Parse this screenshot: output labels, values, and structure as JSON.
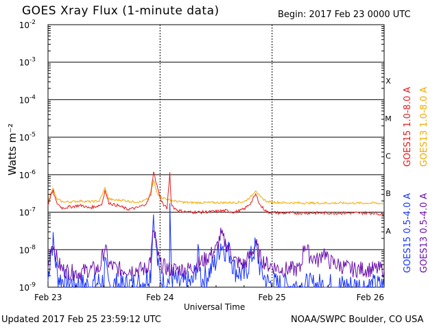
{
  "title": "GOES Xray Flux (1-minute data)",
  "begin_label": "Begin:  2017 Feb 23 0000 UTC",
  "updated_label": "Updated 2017 Feb 25 23:59:12 UTC",
  "credit_label": "NOAA/SWPC Boulder, CO USA",
  "colors": {
    "goes15_long": "#e41a1a",
    "goes13_long": "#f2a900",
    "goes15_short": "#1432ff",
    "goes13_short": "#6a0dad",
    "grid": "#000000"
  },
  "chart_data": {
    "type": "line",
    "title": "GOES Xray Flux (1-minute data)",
    "xlabel": "Universal Time",
    "ylabel": "Watts m⁻²",
    "y_scale": "log",
    "ylim": [
      1e-09,
      0.01
    ],
    "xlim": [
      0,
      72
    ],
    "x_unit": "hours since 2017 Feb 23 0000 UTC",
    "x_ticks": [
      {
        "value": 0,
        "label": "Feb 23"
      },
      {
        "value": 24,
        "label": "Feb 24"
      },
      {
        "value": 48,
        "label": "Feb 25"
      },
      {
        "value": 72,
        "label": "Feb 26"
      }
    ],
    "y_ticks": [
      {
        "exp": -9,
        "label": "10",
        "sup": "-9"
      },
      {
        "exp": -8,
        "label": "10",
        "sup": "-8"
      },
      {
        "exp": -7,
        "label": "10",
        "sup": "-7"
      },
      {
        "exp": -6,
        "label": "10",
        "sup": "-6"
      },
      {
        "exp": -5,
        "label": "10",
        "sup": "-5"
      },
      {
        "exp": -4,
        "label": "10",
        "sup": "-4"
      },
      {
        "exp": -3,
        "label": "10",
        "sup": "-3"
      },
      {
        "exp": -2,
        "label": "10",
        "sup": "-2"
      }
    ],
    "flare_classes": [
      {
        "label": "A",
        "exp": -7.5
      },
      {
        "label": "B",
        "exp": -6.5
      },
      {
        "label": "C",
        "exp": -5.5
      },
      {
        "label": "M",
        "exp": -4.5
      },
      {
        "label": "X",
        "exp": -3.5
      }
    ],
    "legend": [
      "GOES15 1.0-8.0 A",
      "GOES13 1.0-8.0 A",
      "GOES15 0.5-4.0 A",
      "GOES13 0.5-4.0 A"
    ],
    "legend_position": "right, vertical",
    "series": [
      {
        "name": "GOES15 1.0-8.0 A",
        "color": "#e41a1a",
        "points": [
          [
            0,
            1.6e-07
          ],
          [
            0.6,
            2.8e-07
          ],
          [
            1.1,
            3.6e-07
          ],
          [
            1.8,
            1.8e-07
          ],
          [
            3,
            1.3e-07
          ],
          [
            5,
            1.4e-07
          ],
          [
            6.5,
            1.5e-07
          ],
          [
            7.5,
            1.5e-07
          ],
          [
            8.5,
            1.3e-07
          ],
          [
            10,
            1.4e-07
          ],
          [
            11.5,
            1.6e-07
          ],
          [
            12.2,
            3.8e-07
          ],
          [
            13,
            1.8e-07
          ],
          [
            14,
            1.6e-07
          ],
          [
            15,
            1.5e-07
          ],
          [
            17,
            1.2e-07
          ],
          [
            19,
            1.3e-07
          ],
          [
            20.3,
            1.5e-07
          ],
          [
            21.2,
            1.8e-07
          ],
          [
            22,
            3e-07
          ],
          [
            22.6,
            1.2e-06
          ],
          [
            23.2,
            6e-07
          ],
          [
            24,
            2.5e-07
          ],
          [
            24.8,
            1.5e-07
          ],
          [
            25.5,
            1.3e-07
          ],
          [
            26.1,
            1.1e-06
          ],
          [
            26.4,
            1.7e-07
          ],
          [
            27,
            1.3e-07
          ],
          [
            28,
            1.1e-07
          ],
          [
            30,
            1e-07
          ],
          [
            33,
            1e-07
          ],
          [
            36,
            1.05e-07
          ],
          [
            38,
            1.1e-07
          ],
          [
            40,
            1e-07
          ],
          [
            42,
            1.2e-07
          ],
          [
            43.5,
            1.8e-07
          ],
          [
            44.5,
            3e-07
          ],
          [
            45.5,
            1.5e-07
          ],
          [
            47,
            1e-07
          ],
          [
            50,
            9.5e-08
          ],
          [
            55,
            9.5e-08
          ],
          [
            60,
            9.5e-08
          ],
          [
            65,
            9.5e-08
          ],
          [
            70,
            9.5e-08
          ],
          [
            72,
            8.5e-08
          ]
        ]
      },
      {
        "name": "GOES13 1.0-8.0 A",
        "color": "#f2a900",
        "points": [
          [
            0,
            1.9e-07
          ],
          [
            0.6,
            3.4e-07
          ],
          [
            1.1,
            4.2e-07
          ],
          [
            1.8,
            2.3e-07
          ],
          [
            3,
            1.9e-07
          ],
          [
            5,
            1.9e-07
          ],
          [
            7,
            2e-07
          ],
          [
            9,
            1.9e-07
          ],
          [
            11,
            2e-07
          ],
          [
            12.2,
            4.4e-07
          ],
          [
            13,
            2.3e-07
          ],
          [
            14,
            2.1e-07
          ],
          [
            16,
            2.1e-07
          ],
          [
            18,
            1.9e-07
          ],
          [
            20,
            1.9e-07
          ],
          [
            21.5,
            2.3e-07
          ],
          [
            22,
            3.4e-07
          ],
          [
            22.6,
            7e-07
          ],
          [
            23.3,
            3.5e-07
          ],
          [
            24,
            2.6e-07
          ],
          [
            26,
            2.1e-07
          ],
          [
            28,
            1.9e-07
          ],
          [
            30,
            1.8e-07
          ],
          [
            33,
            1.8e-07
          ],
          [
            36,
            1.8e-07
          ],
          [
            40,
            1.8e-07
          ],
          [
            42,
            1.9e-07
          ],
          [
            43.5,
            2.6e-07
          ],
          [
            44.5,
            3.9e-07
          ],
          [
            45.5,
            2.5e-07
          ],
          [
            47,
            1.9e-07
          ],
          [
            50,
            1.8e-07
          ],
          [
            55,
            1.75e-07
          ],
          [
            60,
            1.75e-07
          ],
          [
            65,
            1.75e-07
          ],
          [
            70,
            1.75e-07
          ],
          [
            72,
            1.7e-07
          ]
        ]
      },
      {
        "name": "GOES15 0.5-4.0 A",
        "color": "#1432ff",
        "points": [
          [
            0,
            1.5e-09
          ],
          [
            0.6,
            1e-08
          ],
          [
            1.1,
            1.6e-08
          ],
          [
            2,
            2e-09
          ],
          [
            3,
            1.5e-09
          ],
          [
            6,
            1.2e-09
          ],
          [
            9,
            1.1e-09
          ],
          [
            12,
            1.5e-09
          ],
          [
            12.2,
            3.5e-09
          ],
          [
            13,
            1.2e-09
          ],
          [
            16,
            1.1e-09
          ],
          [
            20,
            1.2e-09
          ],
          [
            22,
            2.5e-09
          ],
          [
            22.6,
            1e-07
          ],
          [
            23,
            2e-08
          ],
          [
            23.6,
            3e-09
          ],
          [
            24.5,
            1.3e-09
          ],
          [
            26,
            1.5e-09
          ],
          [
            26.1,
            9e-08
          ],
          [
            26.5,
            2e-09
          ],
          [
            28,
            1.2e-09
          ],
          [
            31,
            1.3e-09
          ],
          [
            32.3,
            8e-09
          ],
          [
            32.8,
            1.5e-09
          ],
          [
            34,
            2e-09
          ],
          [
            36,
            5e-09
          ],
          [
            37,
            1.5e-08
          ],
          [
            38,
            1e-08
          ],
          [
            39,
            8e-09
          ],
          [
            40,
            3e-09
          ],
          [
            42,
            2e-09
          ],
          [
            43.5,
            6e-09
          ],
          [
            44.5,
            1.2e-08
          ],
          [
            45.5,
            3e-09
          ],
          [
            47,
            1.3e-09
          ],
          [
            50,
            1.1e-09
          ],
          [
            55,
            1.1e-09
          ],
          [
            60,
            1.1e-09
          ],
          [
            65,
            1.05e-09
          ],
          [
            70,
            1.05e-09
          ],
          [
            72,
            1.05e-09
          ]
        ]
      },
      {
        "name": "GOES13 0.5-4.0 A",
        "color": "#6a0dad",
        "points": [
          [
            0,
            3e-09
          ],
          [
            0.6,
            1.2e-08
          ],
          [
            1.1,
            1.5e-08
          ],
          [
            2,
            5e-09
          ],
          [
            3,
            3e-09
          ],
          [
            5,
            2.5e-09
          ],
          [
            7,
            2.5e-09
          ],
          [
            9,
            3e-09
          ],
          [
            11,
            3e-09
          ],
          [
            12.2,
            1.2e-08
          ],
          [
            13,
            4e-09
          ],
          [
            15,
            3e-09
          ],
          [
            17,
            3e-09
          ],
          [
            19,
            3e-09
          ],
          [
            21,
            3e-09
          ],
          [
            22,
            6e-09
          ],
          [
            22.6,
            3.5e-08
          ],
          [
            23.2,
            1.2e-08
          ],
          [
            24,
            4e-09
          ],
          [
            26,
            3e-09
          ],
          [
            28,
            3e-09
          ],
          [
            30,
            3e-09
          ],
          [
            32,
            4e-09
          ],
          [
            34,
            6e-09
          ],
          [
            36,
            1e-08
          ],
          [
            37,
            2.5e-08
          ],
          [
            38,
            1.5e-08
          ],
          [
            39,
            1e-08
          ],
          [
            40,
            5e-09
          ],
          [
            42,
            4e-09
          ],
          [
            43.5,
            8e-09
          ],
          [
            44.5,
            1.4e-08
          ],
          [
            45.5,
            6e-09
          ],
          [
            47,
            4e-09
          ],
          [
            50,
            3e-09
          ],
          [
            54,
            3e-09
          ],
          [
            55,
            1.5e-08
          ],
          [
            56,
            7e-09
          ],
          [
            58,
            5e-09
          ],
          [
            59,
            1e-08
          ],
          [
            60,
            5e-09
          ],
          [
            62,
            4e-09
          ],
          [
            65,
            3e-09
          ],
          [
            68,
            3e-09
          ],
          [
            70,
            3e-09
          ],
          [
            72,
            3e-09
          ]
        ]
      }
    ]
  }
}
